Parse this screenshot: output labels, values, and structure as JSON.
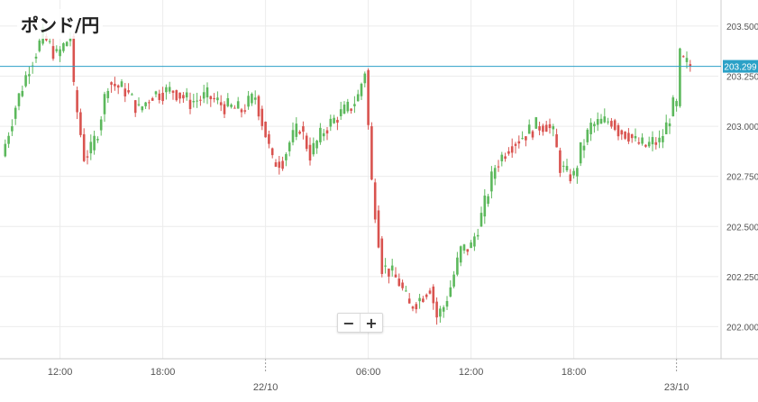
{
  "title": "ポンド/円",
  "zoom": {
    "out_label": "−",
    "in_label": "+"
  },
  "colors": {
    "up": "#5cb85c",
    "down": "#d9534f",
    "grid": "#ececec",
    "axis": "#cccccc",
    "tick_text": "#555555",
    "price_line": "#2ba1c7",
    "price_tag_bg": "#2ba1c7"
  },
  "chart_data": {
    "type": "candlestick",
    "title": "ポンド/円",
    "current_price": 203.299,
    "current_price_label": "203.299",
    "ylim": [
      201.84,
      203.63
    ],
    "grid": true,
    "y_ticks": [
      {
        "value": 202.0,
        "label": "202.000"
      },
      {
        "value": 202.25,
        "label": "202.250"
      },
      {
        "value": 202.5,
        "label": "202.500"
      },
      {
        "value": 202.75,
        "label": "202.750"
      },
      {
        "value": 203.0,
        "label": "203.000"
      },
      {
        "value": 203.25,
        "label": "203.250"
      },
      {
        "value": 203.5,
        "label": "203.500"
      }
    ],
    "x_ticks": [
      {
        "label": "12:00",
        "index": 17,
        "separator": false,
        "row": 1
      },
      {
        "label": "18:00",
        "index": 47,
        "separator": false,
        "row": 1
      },
      {
        "label": "22/10",
        "index": 77,
        "separator": true,
        "row": 2
      },
      {
        "label": "06:00",
        "index": 107,
        "separator": false,
        "row": 1
      },
      {
        "label": "12:00",
        "index": 137,
        "separator": false,
        "row": 1
      },
      {
        "label": "18:00",
        "index": 167,
        "separator": false,
        "row": 1
      },
      {
        "label": "23/10",
        "index": 197,
        "separator": true,
        "row": 2
      }
    ],
    "candles": []
  }
}
